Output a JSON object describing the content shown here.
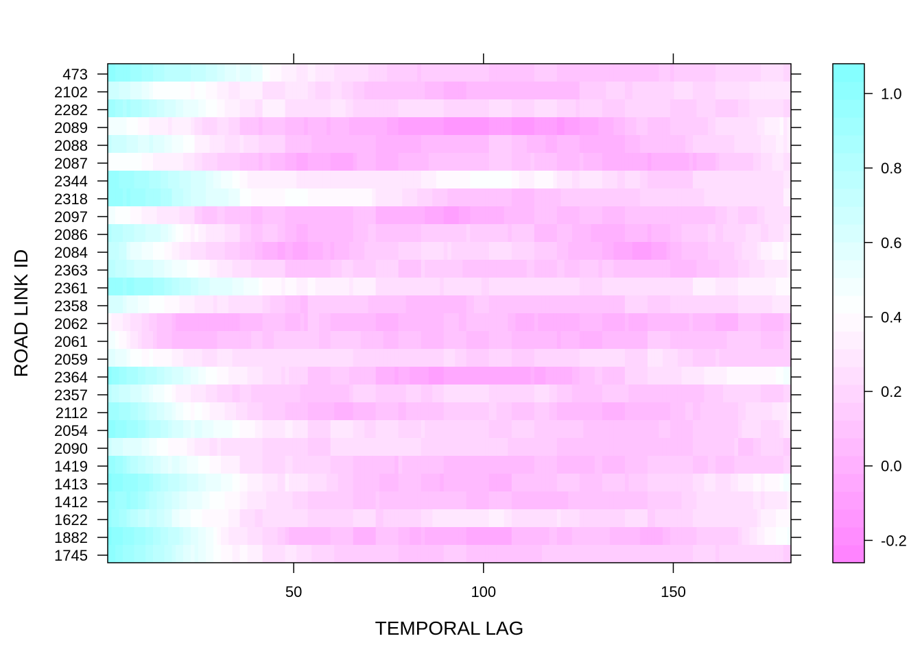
{
  "chart_data": {
    "type": "heatmap",
    "title": "",
    "xlabel": "TEMPORAL LAG",
    "ylabel": "ROAD LINK ID",
    "x_range": [
      1,
      181
    ],
    "x_ticks": [
      "50",
      "100",
      "150"
    ],
    "x_tick_values": [
      50,
      100,
      150
    ],
    "rows_top_to_bottom": [
      "473",
      "2102",
      "2282",
      "2089",
      "2088",
      "2087",
      "2344",
      "2318",
      "2097",
      "2086",
      "2084",
      "2363",
      "2361",
      "2358",
      "2062",
      "2061",
      "2059",
      "2364",
      "2357",
      "2112",
      "2054",
      "2090",
      "1419",
      "1413",
      "1412",
      "1622",
      "1882",
      "1745"
    ],
    "colorbar": {
      "range": [
        -0.26,
        1.08
      ],
      "ticks": [
        "1.0",
        "0.8",
        "0.6",
        "0.4",
        "0.2",
        "0.0",
        "-0.2"
      ],
      "tick_values": [
        1.0,
        0.8,
        0.6,
        0.4,
        0.2,
        0.0,
        -0.2
      ],
      "low_color": "#ff80ff",
      "mid_color": "#ffffff",
      "high_color": "#80ffff"
    },
    "row_profiles": [
      {
        "id": "473",
        "values": [
          1.05,
          0.85,
          0.72,
          0.5,
          0.3,
          0.22,
          0.15,
          0.12,
          0.1,
          0.1,
          0.1,
          0.12,
          0.15,
          0.18,
          0.2
        ]
      },
      {
        "id": "2102",
        "values": [
          0.65,
          0.48,
          0.38,
          0.3,
          0.25,
          0.18,
          0.1,
          0.05,
          0.05,
          0.05,
          0.12,
          0.2,
          0.22,
          0.25,
          0.32
        ]
      },
      {
        "id": "2282",
        "values": [
          0.95,
          0.7,
          0.45,
          0.3,
          0.28,
          0.22,
          0.2,
          0.2,
          0.2,
          0.2,
          0.18,
          0.15,
          0.16,
          0.18,
          0.25
        ]
      },
      {
        "id": "2089",
        "values": [
          0.5,
          0.35,
          0.25,
          0.12,
          0.05,
          0.0,
          -0.08,
          -0.12,
          -0.15,
          -0.12,
          0.0,
          0.1,
          0.18,
          0.22,
          0.35
        ]
      },
      {
        "id": "2088",
        "values": [
          0.72,
          0.55,
          0.35,
          0.2,
          0.12,
          0.05,
          0.0,
          0.05,
          0.1,
          0.05,
          0.0,
          0.1,
          0.15,
          0.22,
          0.32
        ]
      },
      {
        "id": "2087",
        "values": [
          0.45,
          0.35,
          0.22,
          0.12,
          0.0,
          -0.02,
          0.05,
          0.1,
          0.1,
          0.12,
          0.05,
          0.0,
          0.05,
          0.15,
          0.3
        ]
      },
      {
        "id": "2344",
        "values": [
          0.95,
          0.8,
          0.55,
          0.35,
          0.3,
          0.28,
          0.3,
          0.38,
          0.42,
          0.35,
          0.25,
          0.18,
          0.2,
          0.22,
          0.28
        ]
      },
      {
        "id": "2318",
        "values": [
          1.0,
          0.85,
          0.6,
          0.42,
          0.4,
          0.38,
          0.3,
          0.15,
          0.08,
          0.12,
          0.15,
          0.2,
          0.22,
          0.25,
          0.3
        ]
      },
      {
        "id": "2097",
        "values": [
          0.5,
          0.3,
          0.15,
          0.05,
          0.05,
          0.05,
          0.02,
          -0.05,
          0.05,
          0.08,
          0.08,
          0.1,
          0.12,
          0.15,
          0.25
        ]
      },
      {
        "id": "2086",
        "values": [
          0.8,
          0.6,
          0.3,
          0.12,
          0.05,
          0.1,
          0.15,
          0.15,
          0.12,
          0.1,
          0.0,
          0.05,
          0.12,
          0.2,
          0.3
        ]
      },
      {
        "id": "2084",
        "values": [
          0.7,
          0.45,
          0.2,
          0.05,
          -0.05,
          0.1,
          0.2,
          0.25,
          0.2,
          0.15,
          0.05,
          -0.05,
          0.1,
          0.22,
          0.38
        ]
      },
      {
        "id": "2363",
        "values": [
          0.75,
          0.55,
          0.35,
          0.18,
          0.12,
          0.15,
          0.15,
          0.12,
          0.1,
          0.15,
          0.12,
          0.05,
          0.1,
          0.2,
          0.3
        ]
      },
      {
        "id": "2361",
        "values": [
          1.0,
          0.85,
          0.6,
          0.45,
          0.35,
          0.3,
          0.28,
          0.25,
          0.22,
          0.22,
          0.22,
          0.25,
          0.28,
          0.3,
          0.35
        ]
      },
      {
        "id": "2358",
        "values": [
          0.6,
          0.45,
          0.32,
          0.2,
          0.1,
          0.12,
          0.1,
          0.08,
          0.1,
          0.1,
          0.12,
          0.15,
          0.18,
          0.22,
          0.3
        ]
      },
      {
        "id": "2062",
        "values": [
          0.35,
          0.1,
          0.0,
          0.05,
          0.1,
          0.05,
          0.05,
          0.08,
          0.05,
          0.0,
          0.05,
          0.0,
          0.05,
          0.05,
          0.08
        ]
      },
      {
        "id": "2061",
        "values": [
          0.5,
          0.1,
          0.05,
          0.1,
          0.15,
          0.1,
          0.05,
          0.05,
          0.05,
          0.0,
          0.05,
          0.1,
          0.1,
          0.12,
          0.15
        ]
      },
      {
        "id": "2059",
        "values": [
          0.55,
          0.35,
          0.28,
          0.25,
          0.25,
          0.22,
          0.2,
          0.2,
          0.18,
          0.2,
          0.2,
          0.25,
          0.2,
          0.15,
          0.18
        ]
      },
      {
        "id": "2364",
        "values": [
          1.0,
          0.75,
          0.45,
          0.25,
          0.15,
          0.1,
          0.0,
          -0.08,
          -0.05,
          0.0,
          0.1,
          0.18,
          0.25,
          0.35,
          0.45
        ]
      },
      {
        "id": "2357",
        "values": [
          0.75,
          0.45,
          0.28,
          0.15,
          0.1,
          0.15,
          0.15,
          0.2,
          0.22,
          0.2,
          0.12,
          0.1,
          0.1,
          0.15,
          0.2
        ]
      },
      {
        "id": "2112",
        "values": [
          0.95,
          0.65,
          0.35,
          0.15,
          0.05,
          0.02,
          0.1,
          0.15,
          0.15,
          0.12,
          0.02,
          0.05,
          0.12,
          0.2,
          0.3
        ]
      },
      {
        "id": "2054",
        "values": [
          1.0,
          0.75,
          0.5,
          0.35,
          0.25,
          0.25,
          0.22,
          0.2,
          0.18,
          0.15,
          0.1,
          0.1,
          0.15,
          0.18,
          0.25
        ]
      },
      {
        "id": "2090",
        "values": [
          0.65,
          0.45,
          0.28,
          0.2,
          0.2,
          0.22,
          0.22,
          0.2,
          0.15,
          0.12,
          0.1,
          0.1,
          0.12,
          0.15,
          0.2
        ]
      },
      {
        "id": "1419",
        "values": [
          0.95,
          0.65,
          0.38,
          0.25,
          0.2,
          0.15,
          0.1,
          0.05,
          0.05,
          0.05,
          0.1,
          0.12,
          0.12,
          0.15,
          0.2
        ]
      },
      {
        "id": "1413",
        "values": [
          1.05,
          0.85,
          0.55,
          0.35,
          0.25,
          0.15,
          0.08,
          0.05,
          0.05,
          0.08,
          0.1,
          0.15,
          0.2,
          0.3,
          0.45
        ]
      },
      {
        "id": "1412",
        "values": [
          1.0,
          0.75,
          0.45,
          0.28,
          0.18,
          0.12,
          0.1,
          0.1,
          0.08,
          0.05,
          0.08,
          0.12,
          0.18,
          0.25,
          0.3
        ]
      },
      {
        "id": "1622",
        "values": [
          0.95,
          0.65,
          0.4,
          0.25,
          0.2,
          0.18,
          0.22,
          0.28,
          0.3,
          0.25,
          0.2,
          0.2,
          0.22,
          0.25,
          0.35
        ]
      },
      {
        "id": "1882",
        "values": [
          1.05,
          0.8,
          0.45,
          0.2,
          0.08,
          0.05,
          0.05,
          0.0,
          -0.02,
          0.05,
          0.1,
          0.0,
          0.1,
          0.2,
          0.5
        ]
      },
      {
        "id": "1745",
        "values": [
          1.05,
          0.8,
          0.5,
          0.3,
          0.22,
          0.15,
          0.12,
          0.1,
          0.1,
          0.12,
          0.12,
          0.15,
          0.15,
          0.18,
          0.2
        ]
      }
    ],
    "legend": "colorbar-right"
  }
}
